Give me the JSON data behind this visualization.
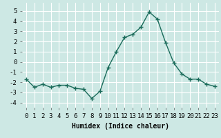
{
  "x": [
    0,
    1,
    2,
    3,
    4,
    5,
    6,
    7,
    8,
    9,
    10,
    11,
    12,
    13,
    14,
    15,
    16,
    17,
    18,
    19,
    20,
    21,
    22,
    23
  ],
  "y": [
    -1.7,
    -2.5,
    -2.2,
    -2.5,
    -2.3,
    -2.3,
    -2.6,
    -2.7,
    -3.6,
    -2.9,
    -0.55,
    1.0,
    2.4,
    2.7,
    3.4,
    4.9,
    4.2,
    1.9,
    -0.1,
    -1.2,
    -1.7,
    -1.7,
    -2.2,
    -2.4
  ],
  "line_color": "#1a6b5a",
  "marker": "+",
  "marker_size": 4,
  "bg_color": "#cde8e4",
  "grid_color": "#ffffff",
  "xlabel": "Humidex (Indice chaleur)",
  "xlabel_fontsize": 7,
  "ylabel_ticks": [
    -4,
    -3,
    -2,
    -1,
    0,
    1,
    2,
    3,
    4,
    5
  ],
  "xlim": [
    -0.5,
    23.5
  ],
  "ylim": [
    -4.5,
    5.8
  ],
  "tick_fontsize": 6.5,
  "linewidth": 1.0
}
